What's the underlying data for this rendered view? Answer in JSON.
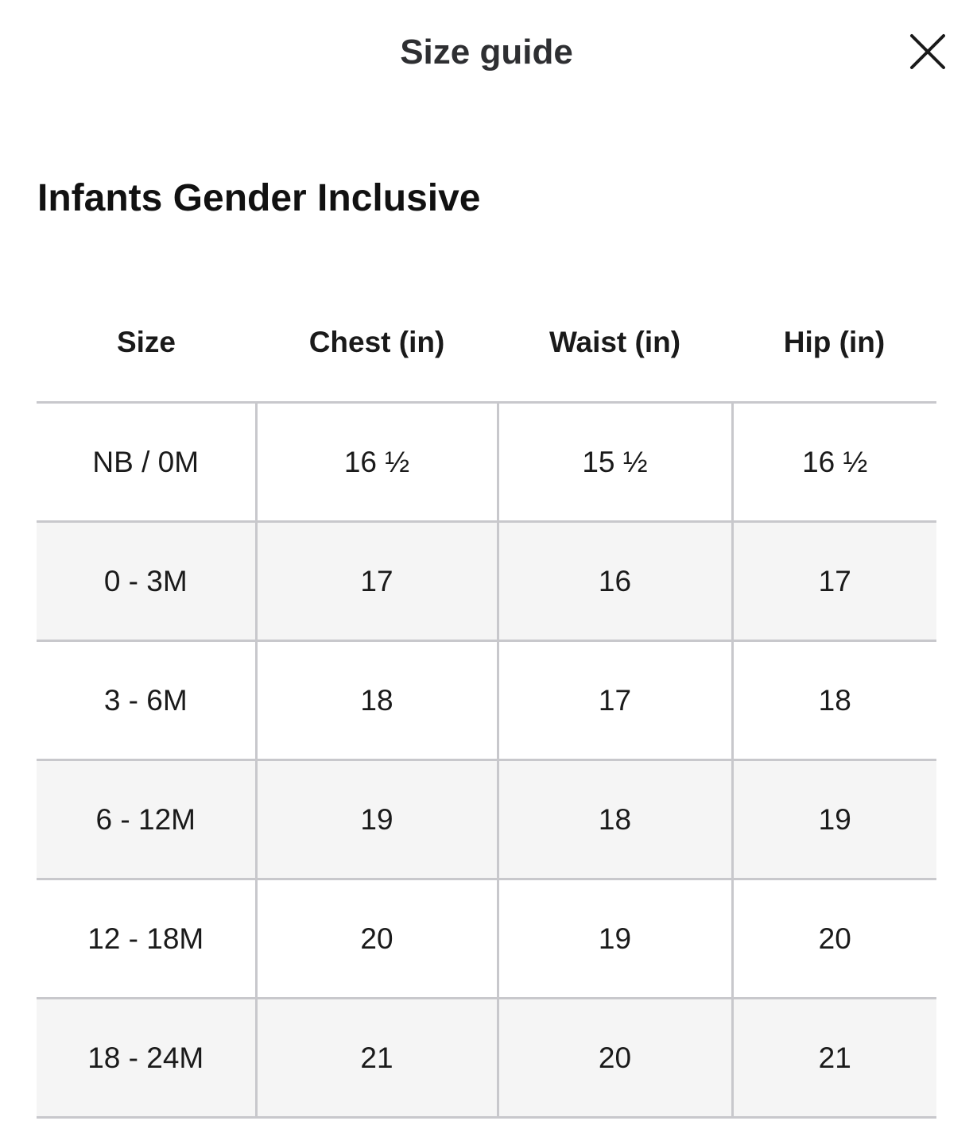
{
  "header": {
    "title": "Size guide",
    "close_icon": "close-icon"
  },
  "section": {
    "title": "Infants Gender Inclusive"
  },
  "table": {
    "columns": [
      "Size",
      "Chest (in)",
      "Waist (in)",
      "Hip (in)"
    ],
    "rows": [
      [
        "NB / 0M",
        "16 ½",
        "15 ½",
        "16 ½"
      ],
      [
        "0 - 3M",
        "17",
        "16",
        "17"
      ],
      [
        "3 - 6M",
        "18",
        "17",
        "18"
      ],
      [
        "6 - 12M",
        "19",
        "18",
        "19"
      ],
      [
        "12 - 18M",
        "20",
        "19",
        "20"
      ],
      [
        "18 - 24M",
        "21",
        "20",
        "21"
      ]
    ]
  },
  "colors": {
    "grid_line": "#c8c8cc",
    "striped_row": "#f5f5f5",
    "title_text": "#2e2f32"
  }
}
